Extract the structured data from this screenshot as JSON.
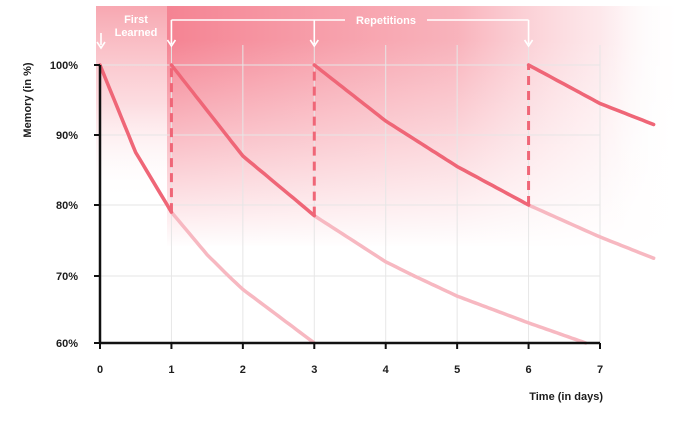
{
  "chart_data": {
    "type": "line",
    "title": "",
    "xlabel": "Time (in days)",
    "ylabel": "Memory (in %)",
    "xlim": [
      0,
      7
    ],
    "ylim": [
      60,
      100
    ],
    "x_ticks": [
      "0",
      "1",
      "2",
      "3",
      "4",
      "5",
      "6",
      "7"
    ],
    "y_ticks": [
      "60%",
      "70%",
      "80%",
      "90%",
      "100%"
    ],
    "grid": true,
    "annotations": {
      "first_learned_line1": "First",
      "first_learned_line2": "Learned",
      "repetitions": "Repetitions"
    },
    "first_learned_day": 0,
    "repetition_days": [
      1,
      3,
      6
    ],
    "series": [
      {
        "start_day": 0,
        "points": [
          [
            0,
            100
          ],
          [
            0.5,
            87.5
          ],
          [
            1,
            79
          ],
          [
            1.5,
            73
          ],
          [
            2,
            68
          ],
          [
            2.5,
            64
          ],
          [
            3,
            60
          ]
        ]
      },
      {
        "start_day": 1,
        "points": [
          [
            1,
            100
          ],
          [
            2,
            87
          ],
          [
            3,
            78.5
          ],
          [
            4,
            72
          ],
          [
            5,
            67
          ],
          [
            6,
            63
          ],
          [
            6.8,
            60
          ]
        ]
      },
      {
        "start_day": 3,
        "points": [
          [
            3,
            100
          ],
          [
            4,
            92
          ],
          [
            5,
            85.5
          ],
          [
            6,
            80
          ],
          [
            7,
            75.5
          ],
          [
            7.75,
            72.5
          ]
        ]
      },
      {
        "start_day": 6,
        "points": [
          [
            6,
            100
          ],
          [
            7,
            94.5
          ],
          [
            7.75,
            91.5
          ]
        ]
      }
    ],
    "colors": {
      "curve": "#ef6677",
      "curve_faded": "#f7b8c1",
      "band": "#f6929f",
      "axis": "#111111",
      "grid": "#e6e6e6",
      "banner_text": "#ffffff"
    }
  }
}
